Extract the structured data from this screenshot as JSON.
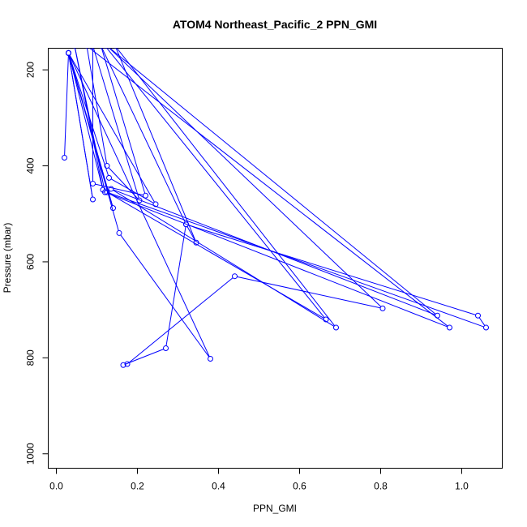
{
  "chart_data": {
    "type": "line",
    "title": "ATOM4 Northeast_Pacific_2 PPN_GMI",
    "xlabel": "PPN_GMI",
    "ylabel": "Pressure (mbar)",
    "xlim": [
      -0.02,
      1.1
    ],
    "ylim": [
      1030,
      155
    ],
    "y_reversed": true,
    "xticks": [
      0.0,
      0.2,
      0.4,
      0.6,
      0.8,
      1.0
    ],
    "xtick_labels": [
      "0.0",
      "0.2",
      "0.4",
      "0.6",
      "0.8",
      "1.0"
    ],
    "yticks": [
      200,
      400,
      600,
      800,
      1000
    ],
    "ytick_labels": [
      "200",
      "400",
      "600",
      "800",
      "1000"
    ],
    "grid": false,
    "color": "#0000ff",
    "series": [
      {
        "points": [
          [
            0.02,
            383
          ],
          [
            0.03,
            165
          ],
          [
            0.09,
            470
          ],
          [
            0.03,
            165
          ],
          [
            0.14,
            488
          ],
          [
            0.03,
            165
          ],
          [
            0.155,
            540
          ],
          [
            0.38,
            802
          ],
          [
            0.03,
            165
          ],
          [
            0.13,
            425
          ],
          [
            0.245,
            480
          ],
          [
            0.03,
            165
          ],
          [
            0.115,
            450
          ],
          [
            0.045,
            150
          ],
          [
            0.12,
            455
          ],
          [
            0.97,
            737
          ],
          [
            0.075,
            150
          ],
          [
            0.125,
            400
          ],
          [
            0.205,
            472
          ],
          [
            0.09,
            150
          ],
          [
            0.09,
            437
          ],
          [
            0.22,
            462
          ],
          [
            0.11,
            150
          ],
          [
            0.32,
            522
          ],
          [
            0.27,
            780
          ],
          [
            0.165,
            815
          ],
          [
            0.175,
            813
          ],
          [
            0.44,
            630
          ],
          [
            0.805,
            697
          ],
          [
            0.125,
            150
          ],
          [
            0.94,
            712
          ],
          [
            0.135,
            448
          ],
          [
            0.69,
            737
          ],
          [
            0.145,
            150
          ],
          [
            0.345,
            560
          ],
          [
            0.32,
            522
          ],
          [
            1.04,
            712
          ],
          [
            1.06,
            737
          ],
          [
            0.125,
            455
          ],
          [
            0.665,
            720
          ],
          [
            0.12,
            150
          ]
        ]
      }
    ]
  }
}
